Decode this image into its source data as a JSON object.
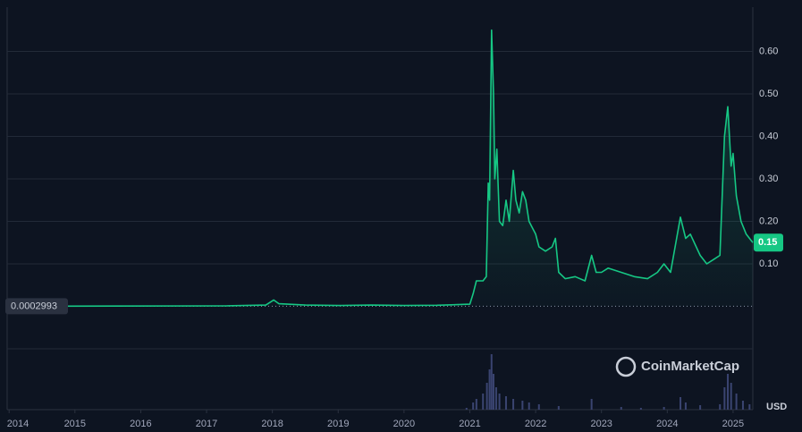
{
  "chart_data": {
    "type": "line",
    "color": "#16c784",
    "x": [
      2013.97,
      2017.3,
      2017.9,
      2018.02,
      2018.1,
      2018.5,
      2019.0,
      2019.5,
      2020.0,
      2020.5,
      2021.0,
      2021.05,
      2021.1,
      2021.2,
      2021.25,
      2021.28,
      2021.3,
      2021.33,
      2021.36,
      2021.38,
      2021.41,
      2021.45,
      2021.5,
      2021.55,
      2021.6,
      2021.66,
      2021.7,
      2021.75,
      2021.8,
      2021.85,
      2021.9,
      2022.0,
      2022.05,
      2022.15,
      2022.25,
      2022.3,
      2022.35,
      2022.45,
      2022.6,
      2022.75,
      2022.85,
      2022.92,
      2023.0,
      2023.1,
      2023.3,
      2023.5,
      2023.7,
      2023.85,
      2023.95,
      2024.05,
      2024.2,
      2024.28,
      2024.35,
      2024.5,
      2024.6,
      2024.7,
      2024.8,
      2024.87,
      2024.92,
      2024.97,
      2025.0,
      2025.05,
      2025.12,
      2025.2,
      2025.3
    ],
    "values": [
      0.0003,
      0.001,
      0.003,
      0.015,
      0.006,
      0.003,
      0.002,
      0.003,
      0.002,
      0.0025,
      0.005,
      0.03,
      0.06,
      0.06,
      0.07,
      0.29,
      0.25,
      0.65,
      0.5,
      0.3,
      0.37,
      0.2,
      0.19,
      0.25,
      0.2,
      0.32,
      0.25,
      0.22,
      0.27,
      0.25,
      0.2,
      0.17,
      0.14,
      0.13,
      0.14,
      0.16,
      0.08,
      0.065,
      0.07,
      0.06,
      0.12,
      0.08,
      0.08,
      0.09,
      0.08,
      0.07,
      0.065,
      0.08,
      0.1,
      0.08,
      0.21,
      0.16,
      0.17,
      0.12,
      0.1,
      0.11,
      0.12,
      0.4,
      0.47,
      0.33,
      0.36,
      0.26,
      0.2,
      0.17,
      0.15
    ],
    "xlim": [
      2013.97,
      2025.3
    ],
    "xticks": [
      2014,
      2015,
      2016,
      2017,
      2018,
      2019,
      2020,
      2021,
      2022,
      2023,
      2024,
      2025
    ],
    "ylim": [
      -0.1,
      0.7
    ],
    "yticks": [
      {
        "value": 0.1,
        "label": "0.10"
      },
      {
        "value": 0.2,
        "label": "0.20"
      },
      {
        "value": 0.3,
        "label": "0.30"
      },
      {
        "value": 0.4,
        "label": "0.40"
      },
      {
        "value": 0.5,
        "label": "0.50"
      },
      {
        "value": 0.6,
        "label": "0.60"
      }
    ],
    "grid": true,
    "start_price": 0.0002993,
    "current_price": 0.15,
    "currency": "USD",
    "watermark": "CoinMarketCap",
    "volume": {
      "color": "#3a4470",
      "x": [
        2020.95,
        2021.05,
        2021.1,
        2021.2,
        2021.26,
        2021.3,
        2021.33,
        2021.36,
        2021.4,
        2021.45,
        2021.55,
        2021.66,
        2021.8,
        2021.9,
        2022.05,
        2022.35,
        2022.85,
        2023.3,
        2023.6,
        2023.95,
        2024.2,
        2024.28,
        2024.5,
        2024.8,
        2024.87,
        2024.92,
        2024.97,
        2025.05,
        2025.15,
        2025.25
      ],
      "values": [
        2,
        8,
        12,
        18,
        30,
        45,
        62,
        40,
        25,
        18,
        15,
        12,
        10,
        8,
        6,
        4,
        12,
        3,
        2,
        3,
        14,
        8,
        5,
        6,
        25,
        40,
        30,
        18,
        10,
        6
      ]
    }
  }
}
